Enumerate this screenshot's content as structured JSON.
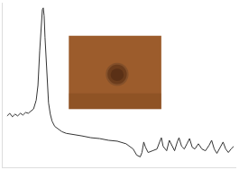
{
  "chart_data": {
    "type": "line",
    "x": [
      5,
      8,
      11,
      14,
      17,
      20,
      23,
      26,
      29,
      32,
      35,
      38,
      40,
      42,
      44,
      45,
      46,
      47,
      48,
      50,
      52,
      54,
      56,
      59,
      63,
      67,
      72,
      80,
      90,
      100,
      110,
      120,
      130,
      140,
      148,
      152,
      156,
      158,
      160,
      162,
      165,
      170,
      175,
      178,
      180,
      182,
      186,
      189,
      192,
      195,
      198,
      200,
      203,
      206,
      209,
      212,
      215,
      218,
      222,
      226,
      230,
      234,
      237,
      240,
      243,
      247,
      250,
      253,
      256,
      259,
      262
    ],
    "values": [
      59,
      62,
      58,
      61,
      59,
      62,
      60,
      63,
      62,
      65,
      67,
      77,
      94,
      134,
      169,
      181,
      183,
      174,
      149,
      104,
      74,
      61,
      53,
      47,
      44,
      41,
      39,
      38,
      36,
      34,
      33,
      31,
      30,
      27,
      21,
      14,
      12,
      17,
      29,
      23,
      17,
      19,
      21,
      29,
      34,
      24,
      19,
      31,
      25,
      19,
      29,
      34,
      24,
      21,
      27,
      33,
      23,
      21,
      27,
      21,
      19,
      25,
      31,
      21,
      16,
      23,
      29,
      21,
      17,
      21,
      24
    ],
    "color": "#333333",
    "xlim": [
      0,
      265
    ],
    "ylim": [
      0,
      189
    ],
    "xticks": [],
    "yticks": [],
    "grid": false,
    "tick_labels": false
  }
}
